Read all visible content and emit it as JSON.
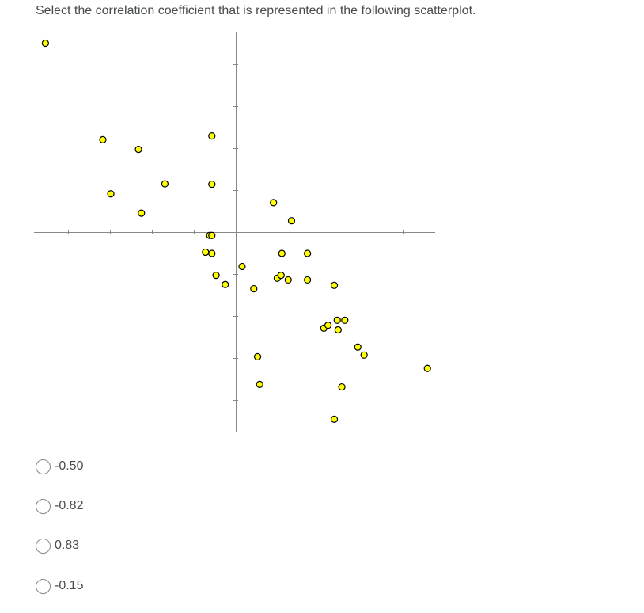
{
  "question": {
    "text": "Select the correlation coefficient that is represented in the following scatterplot."
  },
  "choices": [
    {
      "label": "-0.50"
    },
    {
      "label": "-0.82"
    },
    {
      "label": "0.83"
    },
    {
      "label": "-0.15"
    }
  ],
  "colors": {
    "point_fill": "#ffff00",
    "point_stroke": "#000000",
    "axis": "#888888",
    "text": "#494c4e",
    "radio_border": "#868686"
  },
  "chart_data": {
    "type": "scatter",
    "title": "",
    "xlabel": "",
    "ylabel": "",
    "xlim": [
      -4.8,
      4.8
    ],
    "ylim": [
      -4.8,
      4.8
    ],
    "tick_step": 1,
    "grid": false,
    "x_tick_labels": false,
    "y_tick_labels": false,
    "points": [
      {
        "x": -4.54,
        "y": 4.5
      },
      {
        "x": -3.17,
        "y": 2.2
      },
      {
        "x": -2.98,
        "y": 0.91
      },
      {
        "x": -2.32,
        "y": 1.97
      },
      {
        "x": -2.25,
        "y": 0.45
      },
      {
        "x": -1.69,
        "y": 1.15
      },
      {
        "x": -0.57,
        "y": 2.29
      },
      {
        "x": -0.57,
        "y": 1.14
      },
      {
        "x": -0.62,
        "y": -0.08
      },
      {
        "x": -0.57,
        "y": -0.08
      },
      {
        "x": -0.72,
        "y": -0.48
      },
      {
        "x": -0.57,
        "y": -0.51
      },
      {
        "x": -0.47,
        "y": -1.03
      },
      {
        "x": -0.25,
        "y": -1.25
      },
      {
        "x": 0.15,
        "y": -0.82
      },
      {
        "x": 0.43,
        "y": -1.35
      },
      {
        "x": 0.52,
        "y": -2.97
      },
      {
        "x": 0.57,
        "y": -3.63
      },
      {
        "x": 0.9,
        "y": 0.7
      },
      {
        "x": 1.33,
        "y": 0.27
      },
      {
        "x": 1.1,
        "y": -0.51
      },
      {
        "x": 0.99,
        "y": -1.1
      },
      {
        "x": 1.08,
        "y": -1.03
      },
      {
        "x": 1.25,
        "y": -1.14
      },
      {
        "x": 1.71,
        "y": -0.51
      },
      {
        "x": 1.71,
        "y": -1.14
      },
      {
        "x": 2.35,
        "y": -1.27
      },
      {
        "x": 2.1,
        "y": -2.29
      },
      {
        "x": 2.2,
        "y": -2.22
      },
      {
        "x": 2.35,
        "y": -4.46
      },
      {
        "x": 2.42,
        "y": -2.1
      },
      {
        "x": 2.44,
        "y": -2.33
      },
      {
        "x": 2.6,
        "y": -2.1
      },
      {
        "x": 2.53,
        "y": -3.69
      },
      {
        "x": 2.91,
        "y": -2.74
      },
      {
        "x": 3.06,
        "y": -2.93
      },
      {
        "x": 4.57,
        "y": -3.25
      }
    ]
  }
}
